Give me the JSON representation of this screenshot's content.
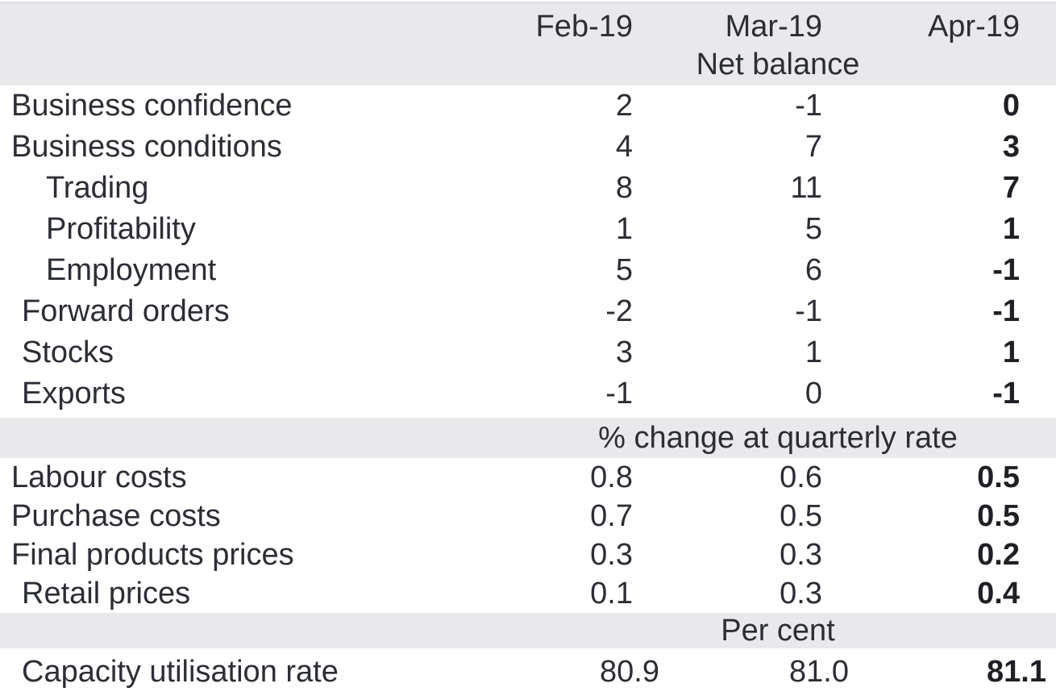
{
  "colors": {
    "band_gray": "#e9e9ec",
    "text": "#2b2e34",
    "bold_text": "#1e2025",
    "background": "#ffffff"
  },
  "chart_data": {
    "type": "table",
    "columns": [
      "Feb-19",
      "Mar-19",
      "Apr-19"
    ],
    "emphasized_column": "Apr-19",
    "sections": [
      {
        "unit": "Net balance",
        "rows": [
          {
            "label": "Business confidence",
            "level": 0,
            "values": [
              "2",
              "-1",
              "0"
            ]
          },
          {
            "label": "Business conditions",
            "level": 0,
            "values": [
              "4",
              "7",
              "3"
            ]
          },
          {
            "label": "Trading",
            "level": 2,
            "values": [
              "8",
              "11",
              "7"
            ]
          },
          {
            "label": "Profitability",
            "level": 2,
            "values": [
              "1",
              "5",
              "1"
            ]
          },
          {
            "label": "Employment",
            "level": 2,
            "values": [
              "5",
              "6",
              "-1"
            ]
          },
          {
            "label": "Forward orders",
            "level": 1,
            "values": [
              "-2",
              "-1",
              "-1"
            ]
          },
          {
            "label": "Stocks",
            "level": 1,
            "values": [
              "3",
              "1",
              "1"
            ]
          },
          {
            "label": "Exports",
            "level": 1,
            "values": [
              "-1",
              "0",
              "-1"
            ]
          }
        ]
      },
      {
        "unit": "% change at quarterly rate",
        "rows": [
          {
            "label": "Labour costs",
            "level": 0,
            "values": [
              "0.8",
              "0.6",
              "0.5"
            ]
          },
          {
            "label": "Purchase costs",
            "level": 0,
            "values": [
              "0.7",
              "0.5",
              "0.5"
            ]
          },
          {
            "label": "Final products prices",
            "level": 0,
            "values": [
              "0.3",
              "0.3",
              "0.2"
            ]
          },
          {
            "label": "Retail prices",
            "level": 1,
            "values": [
              "0.1",
              "0.3",
              "0.4"
            ]
          }
        ]
      },
      {
        "unit": "Per cent",
        "rows": [
          {
            "label": "Capacity utilisation rate",
            "level": 1,
            "values": [
              "80.9",
              "81.0",
              "81.1"
            ]
          }
        ]
      }
    ]
  }
}
